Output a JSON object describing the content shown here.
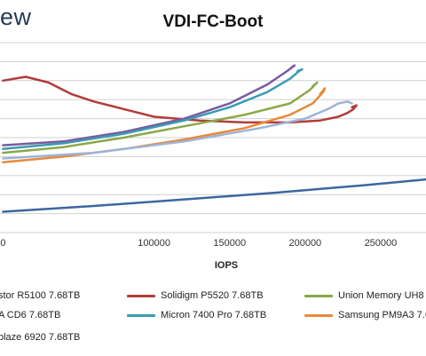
{
  "logo_text": "ew",
  "chart_data": {
    "type": "line",
    "title": "VDI-FC-Boot",
    "xlabel": "IOPS",
    "ylabel": "",
    "xlim": [
      -2000,
      280000
    ],
    "ylim": [
      0,
      1.0
    ],
    "grid": true,
    "legend_placement": "bottom",
    "x_ticks": [
      "0",
      "100000",
      "150000",
      "200000",
      "250000"
    ],
    "x_tick_values": [
      0,
      100000,
      150000,
      200000,
      250000
    ],
    "series": [
      {
        "name": "stor R5100 7.68TB",
        "color": "#3c67a0",
        "points": [
          [
            0,
            0.11
          ],
          [
            60000,
            0.14
          ],
          [
            120000,
            0.175
          ],
          [
            180000,
            0.21
          ],
          [
            240000,
            0.25
          ],
          [
            280000,
            0.28
          ]
        ]
      },
      {
        "name": "Solidigm P5520 7.68TB",
        "color": "#b23c3a",
        "points": [
          [
            0,
            0.8
          ],
          [
            15000,
            0.82
          ],
          [
            30000,
            0.79
          ],
          [
            45000,
            0.73
          ],
          [
            60000,
            0.69
          ],
          [
            80000,
            0.65
          ],
          [
            100000,
            0.61
          ],
          [
            130000,
            0.59
          ],
          [
            160000,
            0.58
          ],
          [
            190000,
            0.58
          ],
          [
            210000,
            0.59
          ],
          [
            222000,
            0.61
          ],
          [
            228000,
            0.63
          ],
          [
            232000,
            0.65
          ],
          [
            234000,
            0.67
          ],
          [
            231000,
            0.66
          ]
        ]
      },
      {
        "name": "Union Memory UH8",
        "color": "#8aa846",
        "points": [
          [
            0,
            0.42
          ],
          [
            40000,
            0.45
          ],
          [
            80000,
            0.5
          ],
          [
            120000,
            0.56
          ],
          [
            160000,
            0.62
          ],
          [
            190000,
            0.68
          ],
          [
            203000,
            0.75
          ],
          [
            208000,
            0.79
          ],
          [
            205000,
            0.77
          ]
        ]
      },
      {
        "name": "A CD6 7.68TB",
        "color": "#7a5aa0",
        "points": [
          [
            0,
            0.46
          ],
          [
            40000,
            0.48
          ],
          [
            80000,
            0.53
          ],
          [
            120000,
            0.6
          ],
          [
            150000,
            0.68
          ],
          [
            175000,
            0.78
          ],
          [
            188000,
            0.85
          ],
          [
            193000,
            0.88
          ],
          [
            191000,
            0.87
          ]
        ]
      },
      {
        "name": "Micron 7400 Pro 7.68TB",
        "color": "#3a9bb3",
        "points": [
          [
            0,
            0.44
          ],
          [
            40000,
            0.47
          ],
          [
            80000,
            0.52
          ],
          [
            120000,
            0.59
          ],
          [
            150000,
            0.66
          ],
          [
            175000,
            0.74
          ],
          [
            190000,
            0.81
          ],
          [
            196000,
            0.85
          ],
          [
            198000,
            0.86
          ],
          [
            195000,
            0.85
          ]
        ]
      },
      {
        "name": "Samsung PM9A3 7.6",
        "color": "#e8893a",
        "points": [
          [
            0,
            0.37
          ],
          [
            40000,
            0.4
          ],
          [
            80000,
            0.44
          ],
          [
            120000,
            0.49
          ],
          [
            160000,
            0.55
          ],
          [
            190000,
            0.62
          ],
          [
            205000,
            0.68
          ],
          [
            212000,
            0.74
          ],
          [
            213000,
            0.76
          ],
          [
            210000,
            0.73
          ]
        ]
      },
      {
        "name": "blaze 6920 7.68TB",
        "color": "#9db4d8",
        "points": [
          [
            0,
            0.39
          ],
          [
            60000,
            0.42
          ],
          [
            120000,
            0.48
          ],
          [
            170000,
            0.55
          ],
          [
            200000,
            0.6
          ],
          [
            215000,
            0.65
          ],
          [
            222000,
            0.68
          ],
          [
            228000,
            0.69
          ],
          [
            231000,
            0.68
          ]
        ]
      }
    ]
  }
}
